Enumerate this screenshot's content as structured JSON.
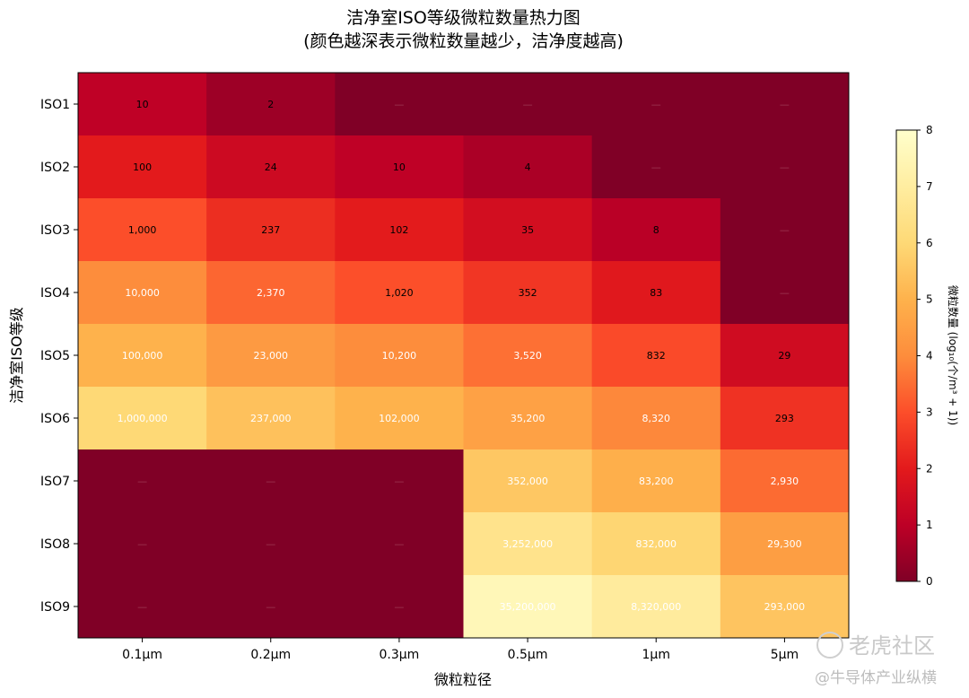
{
  "title_line1": "洁净室ISO等级微粒数量热力图",
  "title_line2": "(颜色越深表示微粒数量越少，洁净度越高)",
  "watermark_text": "老虎社区",
  "watermark_sub": "@牛导体产业纵横",
  "chart_data": {
    "type": "heatmap",
    "title": "洁净室ISO等级微粒数量热力图 (颜色越深表示微粒数量越少，洁净度越高)",
    "xlabel": "微粒粒径",
    "ylabel": "洁净室ISO等级",
    "x_categories": [
      "0.1μm",
      "0.2μm",
      "0.3μm",
      "0.5μm",
      "1μm",
      "5μm"
    ],
    "y_categories": [
      "ISO1",
      "ISO2",
      "ISO3",
      "ISO4",
      "ISO5",
      "ISO6",
      "ISO7",
      "ISO8",
      "ISO9"
    ],
    "missing_label": "—",
    "values": [
      [
        10,
        2,
        null,
        null,
        null,
        null
      ],
      [
        100,
        24,
        10,
        4,
        null,
        null
      ],
      [
        1000,
        237,
        102,
        35,
        8,
        null
      ],
      [
        10000,
        2370,
        1020,
        352,
        83,
        null
      ],
      [
        100000,
        23000,
        10200,
        3520,
        832,
        29
      ],
      [
        1000000,
        237000,
        102000,
        35200,
        8320,
        293
      ],
      [
        null,
        null,
        null,
        352000,
        83200,
        2930
      ],
      [
        null,
        null,
        null,
        3252000,
        832000,
        29300
      ],
      [
        null,
        null,
        null,
        35200000,
        8320000,
        293000
      ]
    ],
    "labels": [
      [
        "10",
        "2",
        "—",
        "—",
        "—",
        "—"
      ],
      [
        "100",
        "24",
        "10",
        "4",
        "—",
        "—"
      ],
      [
        "1,000",
        "237",
        "102",
        "35",
        "8",
        "—"
      ],
      [
        "10,000",
        "2,370",
        "1,020",
        "352",
        "83",
        "—"
      ],
      [
        "100,000",
        "23,000",
        "10,200",
        "3,520",
        "832",
        "29"
      ],
      [
        "1,000,000",
        "237,000",
        "102,000",
        "35,200",
        "8,320",
        "293"
      ],
      [
        "—",
        "—",
        "—",
        "352,000",
        "83,200",
        "2,930"
      ],
      [
        "—",
        "—",
        "—",
        "3,252,000",
        "832,000",
        "29,300"
      ],
      [
        "—",
        "—",
        "—",
        "35,200,000",
        "8,320,000",
        "293,000"
      ]
    ],
    "colorbar": {
      "label": "微粒数量 (log₁₀(个/m³ + 1))",
      "range": [
        0,
        8
      ],
      "ticks": [
        "0",
        "1",
        "2",
        "3",
        "4",
        "5",
        "6",
        "7",
        "8"
      ],
      "colormap": "YlOrRd"
    }
  }
}
